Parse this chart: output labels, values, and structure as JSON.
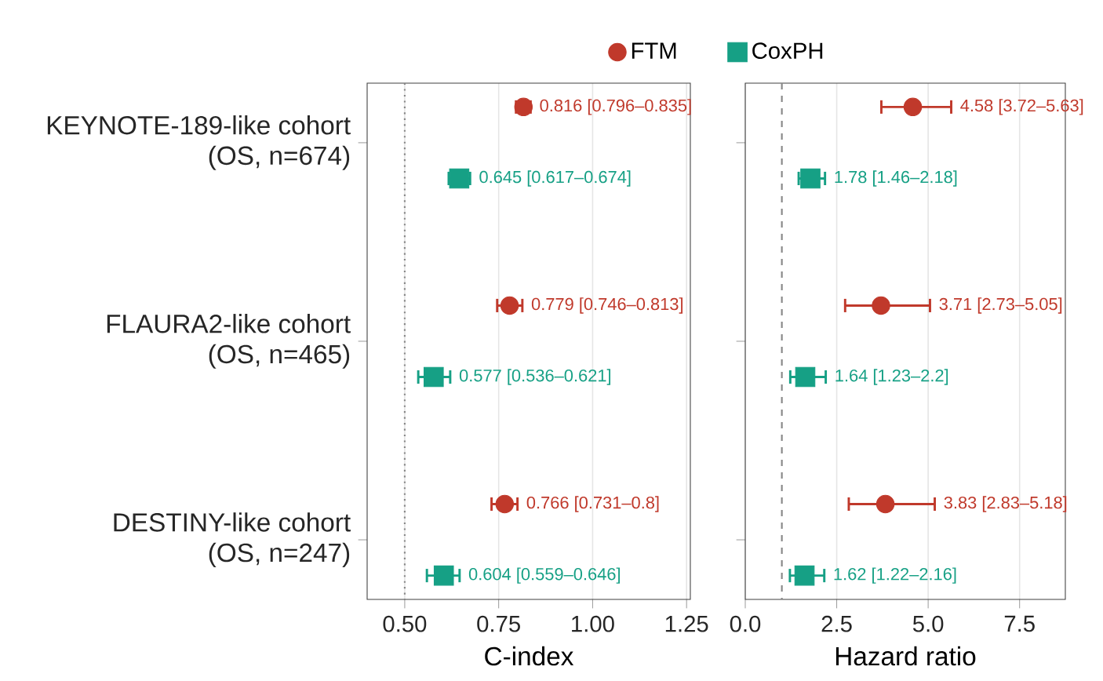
{
  "chart_data": [
    {
      "type": "scatter",
      "orientation": "horizontal",
      "xlabel": "C-index",
      "categories": [
        "KEYNOTE-189-like cohort\n(OS, n=674)",
        "FLAURA2-like cohort\n(OS, n=465)",
        "DESTINY-like cohort\n(OS, n=247)"
      ],
      "xlim": [
        0.4,
        1.26
      ],
      "xticks": [
        {
          "value": 0.5,
          "label": "0.50"
        },
        {
          "value": 0.75,
          "label": "0.75"
        },
        {
          "value": 1.0,
          "label": "1.00"
        },
        {
          "value": 1.25,
          "label": "1.25"
        }
      ],
      "grid": "x",
      "legend": "top",
      "ref_lines": [
        {
          "axis": "x",
          "value": 0.5,
          "color": "#888888",
          "line_style": "dotted"
        }
      ],
      "series": [
        {
          "name": "FTM",
          "color": "#c0392b",
          "marker": "circle",
          "values": [
            0.816,
            0.779,
            0.766
          ],
          "errors": [
            [
              0.796,
              0.835
            ],
            [
              0.746,
              0.813
            ],
            [
              0.731,
              0.8
            ]
          ],
          "value_labels": [
            "0.816 [0.796–0.835]",
            "0.779 [0.746–0.813]",
            "0.766 [0.731–0.8]"
          ]
        },
        {
          "name": "CoxPH",
          "color": "#16a085",
          "marker": "square",
          "values": [
            0.645,
            0.577,
            0.604
          ],
          "errors": [
            [
              0.617,
              0.674
            ],
            [
              0.536,
              0.621
            ],
            [
              0.559,
              0.646
            ]
          ],
          "value_labels": [
            "0.645 [0.617–0.674]",
            "0.577 [0.536–0.621]",
            "0.604 [0.559–0.646]"
          ]
        }
      ]
    },
    {
      "type": "scatter",
      "orientation": "horizontal",
      "xlabel": "Hazard ratio",
      "categories": [
        null,
        null,
        null
      ],
      "tick_labels": "x",
      "xlim": [
        0,
        8.75
      ],
      "xticks": [
        {
          "value": 0,
          "label": "0.0"
        },
        {
          "value": 2.5,
          "label": "2.5"
        },
        {
          "value": 5.0,
          "label": "5.0"
        },
        {
          "value": 7.5,
          "label": "7.5"
        }
      ],
      "grid": "x",
      "ref_lines": [
        {
          "axis": "x",
          "value": 1,
          "color": "#888888",
          "line_style": "dashed"
        }
      ],
      "series": [
        {
          "color": "#c0392b",
          "marker": "circle",
          "values": [
            4.58,
            3.71,
            3.83
          ],
          "errors": [
            [
              3.72,
              5.63
            ],
            [
              2.73,
              5.05
            ],
            [
              2.83,
              5.18
            ]
          ],
          "value_labels": [
            "4.58 [3.72–5.63]",
            "3.71 [2.73–5.05]",
            "3.83 [2.83–5.18]"
          ]
        },
        {
          "color": "#16a085",
          "marker": "square",
          "values": [
            1.78,
            1.64,
            1.62
          ],
          "errors": [
            [
              1.46,
              2.18
            ],
            [
              1.23,
              2.2
            ],
            [
              1.22,
              2.16
            ]
          ],
          "value_labels": [
            "1.78 [1.46–2.18]",
            "1.64 [1.23–2.2]",
            "1.62 [1.22–2.16]"
          ]
        }
      ]
    }
  ]
}
